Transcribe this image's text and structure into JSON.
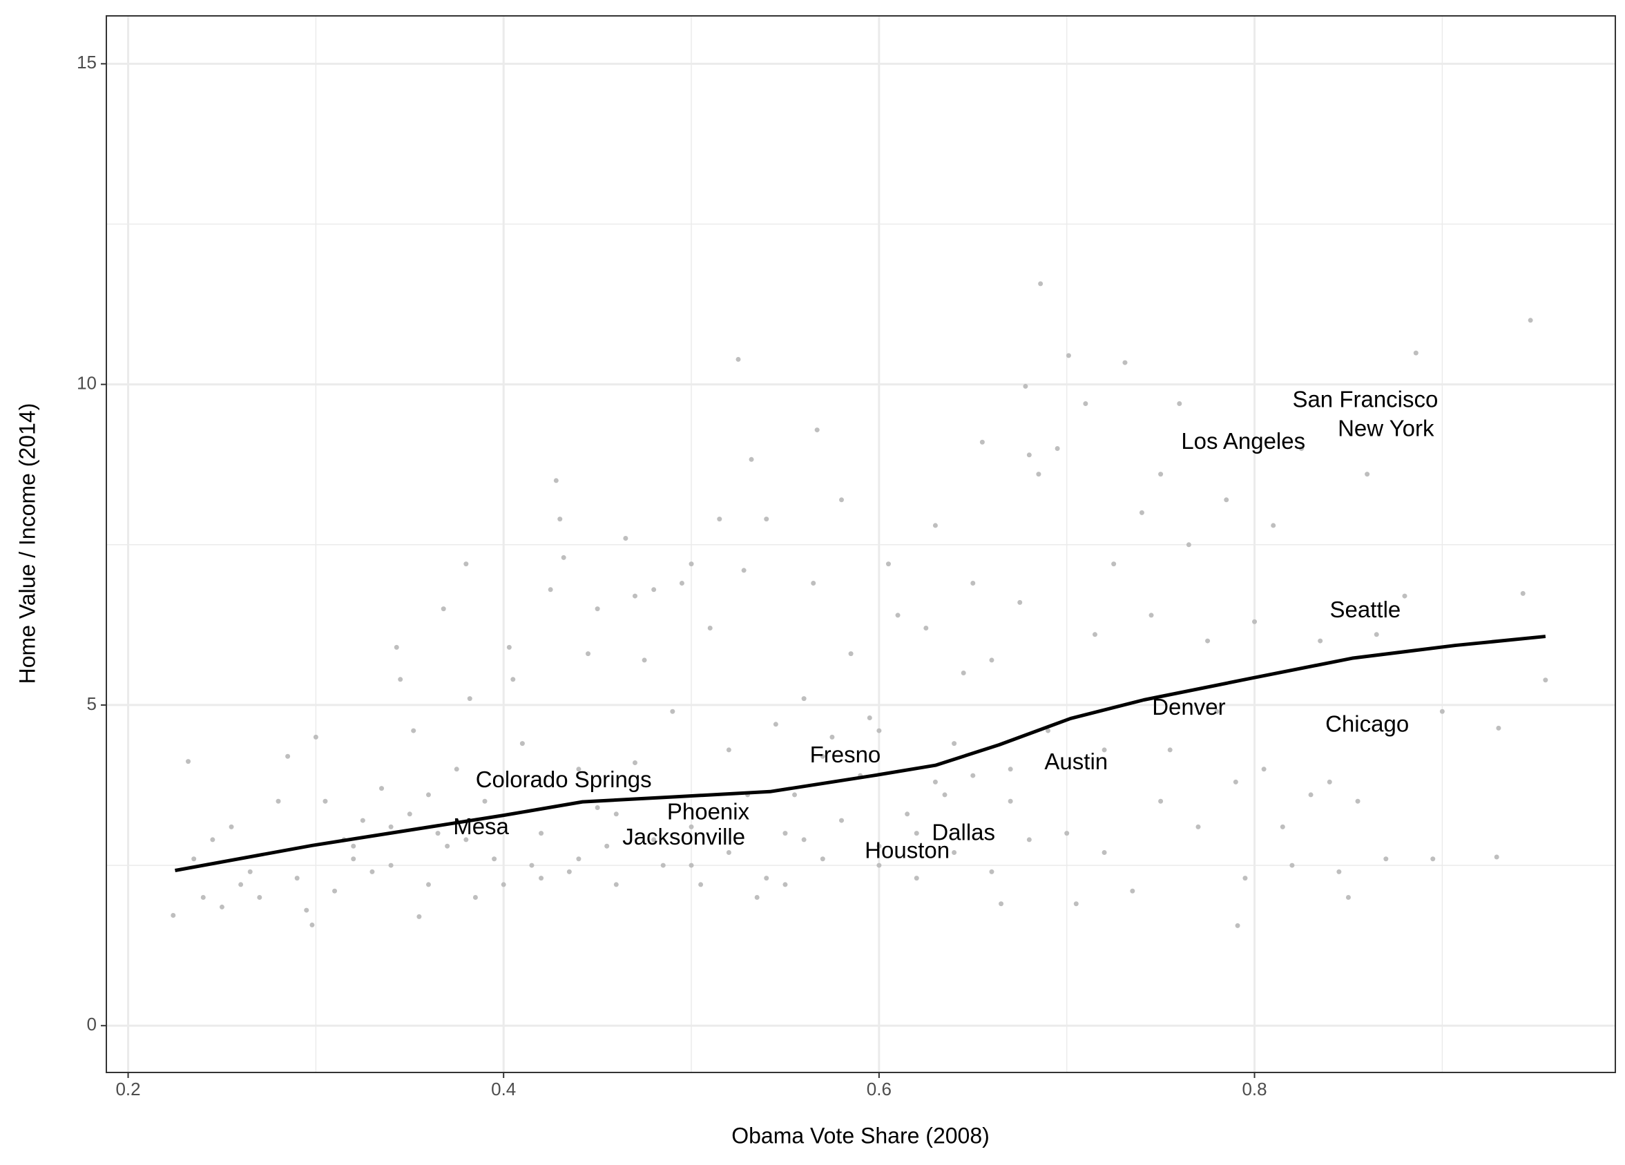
{
  "chart_data": {
    "type": "scatter",
    "x_label": "Obama Vote Share (2008)",
    "y_label": "Home Value / Income (2014)",
    "xlim": [
      0.1884,
      0.9922
    ],
    "ylim": [
      -0.73,
      15.747
    ],
    "xticks": [
      0.2,
      0.4,
      0.6,
      0.8
    ],
    "yticks": [
      0,
      5,
      10,
      15
    ],
    "x_minor_ticks": [
      0.3,
      0.5,
      0.7,
      0.9
    ],
    "y_minor_ticks": [
      2.5,
      7.5,
      12.5
    ],
    "grid": true,
    "points": {
      "color": "#bebebe",
      "x": [
        0.232,
        0.235,
        0.24,
        0.245,
        0.25,
        0.255,
        0.26,
        0.265,
        0.27,
        0.28,
        0.285,
        0.29,
        0.295,
        0.3,
        0.305,
        0.31,
        0.315,
        0.32,
        0.325,
        0.33,
        0.335,
        0.34,
        0.343,
        0.345,
        0.35,
        0.352,
        0.355,
        0.36,
        0.365,
        0.368,
        0.37,
        0.375,
        0.38,
        0.382,
        0.385,
        0.39,
        0.395,
        0.4,
        0.403,
        0.405,
        0.41,
        0.415,
        0.42,
        0.425,
        0.428,
        0.43,
        0.432,
        0.435,
        0.44,
        0.445,
        0.45,
        0.455,
        0.46,
        0.465,
        0.47,
        0.475,
        0.48,
        0.485,
        0.49,
        0.495,
        0.5,
        0.505,
        0.51,
        0.515,
        0.52,
        0.525,
        0.528,
        0.532,
        0.535,
        0.54,
        0.545,
        0.55,
        0.555,
        0.56,
        0.565,
        0.567,
        0.57,
        0.575,
        0.58,
        0.585,
        0.59,
        0.595,
        0.6,
        0.605,
        0.61,
        0.615,
        0.62,
        0.625,
        0.63,
        0.635,
        0.64,
        0.645,
        0.65,
        0.655,
        0.66,
        0.665,
        0.67,
        0.675,
        0.678,
        0.68,
        0.685,
        0.686,
        0.69,
        0.695,
        0.7,
        0.701,
        0.705,
        0.71,
        0.715,
        0.72,
        0.725,
        0.731,
        0.735,
        0.74,
        0.745,
        0.75,
        0.755,
        0.76,
        0.765,
        0.77,
        0.775,
        0.78,
        0.785,
        0.79,
        0.791,
        0.795,
        0.8,
        0.805,
        0.81,
        0.815,
        0.82,
        0.825,
        0.83,
        0.835,
        0.84,
        0.845,
        0.85,
        0.855,
        0.86,
        0.865,
        0.87,
        0.88,
        0.886,
        0.895,
        0.9,
        0.929,
        0.93,
        0.943,
        0.947,
        0.955,
        0.224,
        0.298,
        0.42,
        0.44,
        0.46,
        0.48,
        0.5,
        0.52,
        0.54,
        0.56,
        0.58,
        0.6,
        0.62,
        0.64,
        0.66,
        0.68,
        0.36,
        0.38,
        0.34,
        0.32,
        0.45,
        0.53,
        0.57,
        0.63,
        0.67,
        0.72,
        0.75,
        0.6,
        0.65,
        0.55,
        0.5,
        0.47
      ],
      "y": [
        4.12,
        2.6,
        2.0,
        2.9,
        1.85,
        3.1,
        2.2,
        2.4,
        2.0,
        3.5,
        4.2,
        2.3,
        1.8,
        4.5,
        3.5,
        2.1,
        2.9,
        2.6,
        3.2,
        2.4,
        3.7,
        2.5,
        5.9,
        5.4,
        3.3,
        4.6,
        1.7,
        2.2,
        3.0,
        6.5,
        2.8,
        4.0,
        7.2,
        5.1,
        2.0,
        3.5,
        2.6,
        2.2,
        5.9,
        5.4,
        4.4,
        2.5,
        3.0,
        6.8,
        8.5,
        7.9,
        7.3,
        2.4,
        4.0,
        5.8,
        6.5,
        2.8,
        3.3,
        7.6,
        6.7,
        5.7,
        6.8,
        2.5,
        4.9,
        6.9,
        7.2,
        2.2,
        6.2,
        7.9,
        4.3,
        10.39,
        7.1,
        8.83,
        2.0,
        7.9,
        4.7,
        2.2,
        3.6,
        5.1,
        6.9,
        9.29,
        2.6,
        4.5,
        8.2,
        5.8,
        3.9,
        4.8,
        2.5,
        7.2,
        6.4,
        3.3,
        2.3,
        6.2,
        7.8,
        3.6,
        4.4,
        5.5,
        6.9,
        9.1,
        5.7,
        1.9,
        3.5,
        6.6,
        9.97,
        8.9,
        8.6,
        11.57,
        4.6,
        9.0,
        3.0,
        10.45,
        1.9,
        9.7,
        6.1,
        4.3,
        7.2,
        10.34,
        2.1,
        8.0,
        6.4,
        8.6,
        4.3,
        9.7,
        7.5,
        3.1,
        6.0,
        4.9,
        8.2,
        3.8,
        1.56,
        2.3,
        6.3,
        4.0,
        7.8,
        3.1,
        2.5,
        9.0,
        3.6,
        6.0,
        3.8,
        2.4,
        2.0,
        3.5,
        8.6,
        6.1,
        2.6,
        6.7,
        10.49,
        2.6,
        4.9,
        2.63,
        4.64,
        6.74,
        11.0,
        5.39,
        1.72,
        1.57,
        2.3,
        2.6,
        2.2,
        2.9,
        3.1,
        2.7,
        2.3,
        2.9,
        3.2,
        2.8,
        3.0,
        2.7,
        2.4,
        2.9,
        3.6,
        2.9,
        3.1,
        2.8,
        3.4,
        3.6,
        4.2,
        3.8,
        4.0,
        2.7,
        3.5,
        4.6,
        3.9,
        3.0,
        2.5,
        4.1
      ]
    },
    "smooth": {
      "color": "#000000",
      "x": [
        0.225,
        0.298,
        0.4,
        0.442,
        0.492,
        0.542,
        0.597,
        0.63,
        0.664,
        0.702,
        0.741,
        0.797,
        0.852,
        0.907,
        0.955
      ],
      "y": [
        2.42,
        2.81,
        3.28,
        3.49,
        3.57,
        3.65,
        3.9,
        4.06,
        4.38,
        4.79,
        5.08,
        5.41,
        5.73,
        5.93,
        6.07
      ]
    },
    "annotations": [
      {
        "text": "San Francisco",
        "x": 0.859,
        "y": 9.74
      },
      {
        "text": "New York",
        "x": 0.87,
        "y": 9.29
      },
      {
        "text": "Los Angeles",
        "x": 0.794,
        "y": 9.09
      },
      {
        "text": "Seattle",
        "x": 0.859,
        "y": 6.46
      },
      {
        "text": "Denver",
        "x": 0.765,
        "y": 4.94
      },
      {
        "text": "Chicago",
        "x": 0.86,
        "y": 4.68
      },
      {
        "text": "Austin",
        "x": 0.705,
        "y": 4.09
      },
      {
        "text": "Fresno",
        "x": 0.582,
        "y": 4.2
      },
      {
        "text": "Colorado Springs",
        "x": 0.432,
        "y": 3.81
      },
      {
        "text": "Phoenix",
        "x": 0.509,
        "y": 3.31
      },
      {
        "text": "Mesa",
        "x": 0.388,
        "y": 3.08
      },
      {
        "text": "Jacksonville",
        "x": 0.496,
        "y": 2.92
      },
      {
        "text": "Dallas",
        "x": 0.645,
        "y": 2.99
      },
      {
        "text": "Houston",
        "x": 0.615,
        "y": 2.71
      }
    ]
  }
}
